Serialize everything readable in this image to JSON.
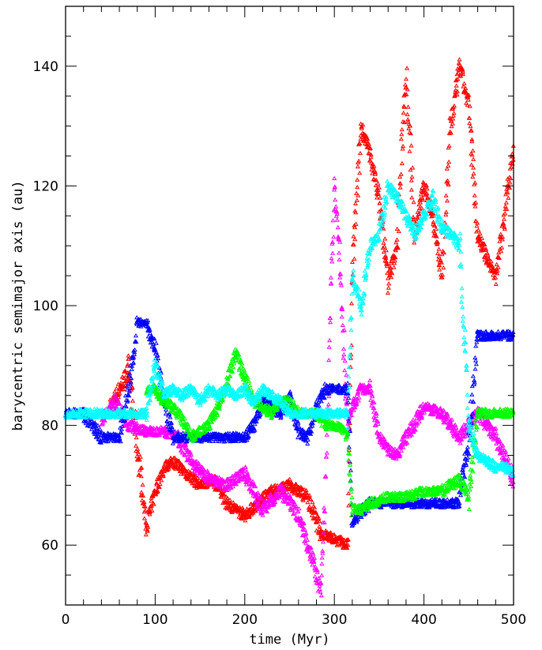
{
  "chart_data": {
    "type": "scatter",
    "title": "",
    "xlabel": "time (Myr)",
    "ylabel": "barycentric semimajor axis (au)",
    "xlim": [
      0,
      500
    ],
    "ylim": [
      50,
      150
    ],
    "x_ticks": [
      0,
      100,
      200,
      300,
      400,
      500
    ],
    "y_ticks": [
      60,
      80,
      100,
      120,
      140
    ],
    "grid": false,
    "marker": "triangle",
    "series": [
      {
        "color": "#ff0000",
        "x": [
          50,
          70,
          85,
          90,
          100,
          110,
          120,
          135,
          150,
          165,
          180,
          200,
          215,
          230,
          250,
          270,
          285,
          300,
          315,
          320,
          330,
          340,
          350,
          360,
          370,
          380,
          390,
          400,
          410,
          420,
          430,
          440,
          450,
          460,
          470,
          480,
          490,
          500
        ],
        "y": [
          83,
          89,
          70,
          63,
          69,
          73,
          74,
          72,
          70,
          71,
          67,
          65,
          67,
          69,
          70,
          68,
          62,
          61,
          60,
          105,
          130,
          125,
          118,
          104,
          110,
          140,
          112,
          120,
          115,
          105,
          130,
          140,
          133,
          112,
          108,
          105,
          115,
          127
        ]
      },
      {
        "color": "#ff00ff",
        "x": [
          40,
          55,
          70,
          90,
          110,
          125,
          140,
          160,
          180,
          200,
          220,
          240,
          260,
          275,
          285,
          290,
          295,
          300,
          305,
          315,
          320,
          330,
          340,
          350,
          360,
          370,
          380,
          400,
          420,
          440,
          460,
          480,
          500
        ],
        "y": [
          81,
          84,
          80,
          79,
          79,
          78,
          74,
          71,
          70,
          72,
          66,
          69,
          65,
          58,
          52,
          70,
          95,
          120,
          110,
          80,
          83,
          86,
          86,
          78,
          76,
          75,
          78,
          83,
          82,
          78,
          82,
          78,
          71
        ]
      },
      {
        "color": "#0000ff",
        "x": [
          0,
          20,
          40,
          60,
          75,
          80,
          90,
          100,
          110,
          120,
          140,
          160,
          180,
          200,
          210,
          220,
          230,
          240,
          250,
          260,
          270,
          280,
          290,
          300,
          310,
          315,
          320,
          340,
          350,
          360,
          380,
          400,
          420,
          438,
          450,
          460,
          480,
          500
        ],
        "y": [
          82,
          82,
          78,
          78,
          90,
          97,
          97,
          93,
          84,
          78,
          78,
          78,
          78,
          78,
          80,
          84,
          83,
          82,
          85,
          79,
          78,
          83,
          86,
          86,
          86,
          86,
          64,
          67,
          67,
          67,
          67,
          67,
          67,
          67,
          77,
          95,
          95,
          95
        ]
      },
      {
        "color": "#00ff00",
        "x": [
          90,
          100,
          110,
          120,
          130,
          140,
          150,
          160,
          170,
          180,
          190,
          200,
          210,
          220,
          230,
          240,
          250,
          260,
          270,
          280,
          290,
          300,
          310,
          315,
          320,
          330,
          340,
          360,
          380,
          400,
          420,
          440,
          450,
          460,
          480,
          500
        ],
        "y": [
          86,
          86,
          84,
          83,
          81,
          78,
          79,
          80,
          83,
          87,
          92,
          88,
          84,
          83,
          82,
          84,
          84,
          82,
          82,
          82,
          80,
          80,
          79,
          78,
          66,
          66,
          67,
          68,
          68,
          69,
          69,
          71,
          68,
          82,
          82,
          82
        ]
      },
      {
        "color": "#00ffff",
        "x": [
          0,
          20,
          40,
          60,
          70,
          80,
          90,
          100,
          110,
          120,
          130,
          140,
          150,
          160,
          170,
          180,
          190,
          200,
          210,
          220,
          230,
          240,
          250,
          260,
          270,
          280,
          300,
          310,
          315,
          320,
          330,
          340,
          350,
          360,
          370,
          380,
          390,
          400,
          410,
          420,
          430,
          440,
          450,
          460,
          470,
          480,
          490,
          500
        ],
        "y": [
          82,
          82,
          82,
          82,
          82,
          82,
          82,
          90,
          85,
          86,
          85,
          86,
          84,
          86,
          85,
          86,
          85,
          86,
          84,
          86,
          85,
          84,
          82,
          82,
          82,
          82,
          82,
          82,
          82,
          105,
          100,
          110,
          112,
          120,
          118,
          115,
          112,
          115,
          118,
          113,
          112,
          110,
          80,
          75,
          74,
          73,
          73,
          72
        ]
      }
    ]
  }
}
